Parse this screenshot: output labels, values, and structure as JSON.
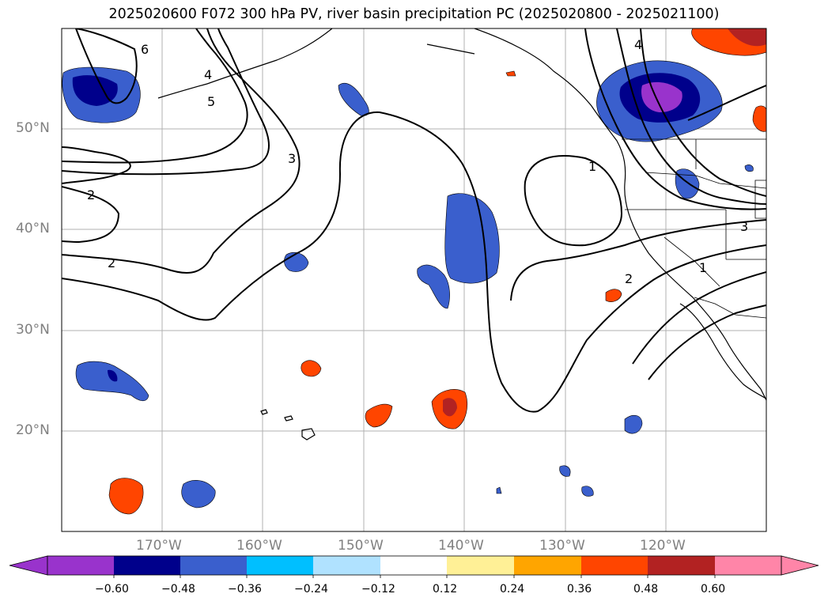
{
  "title": "2025020600 F072 300 hPa PV, river basin precipitation PC (2025020800 - 2025021100)",
  "lat_labels": [
    "50°N",
    "40°N",
    "30°N",
    "20°N"
  ],
  "lon_labels": [
    "170°W",
    "160°W",
    "150°W",
    "140°W",
    "130°W",
    "120°W"
  ],
  "contour_labels": [
    "6",
    "4",
    "5",
    "3",
    "2",
    "2",
    "1",
    "2",
    "1",
    "3",
    "4"
  ],
  "colorbar": {
    "ticks": [
      "−0.60",
      "−0.48",
      "−0.36",
      "−0.24",
      "−0.12",
      "0.12",
      "0.24",
      "0.36",
      "0.48",
      "0.60"
    ],
    "colors": [
      "#9933cc",
      "#00008b",
      "#3a5fcd",
      "#00bfff",
      "#b0e2ff",
      "#ffffff",
      "#fff096",
      "#ffa500",
      "#ff4500",
      "#b22222",
      "#ff85a8"
    ]
  }
}
